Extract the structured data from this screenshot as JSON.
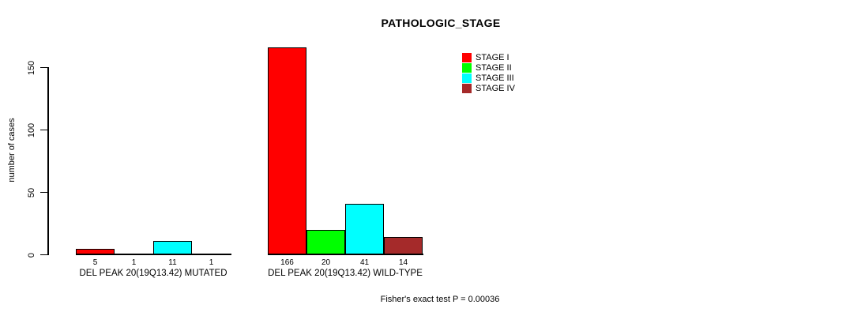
{
  "page": {
    "background_color": "#FFFFFF",
    "text_color": "#000000"
  },
  "chart_data": {
    "type": "bar",
    "title": "PATHOLOGIC_STAGE",
    "xlabel": "",
    "ylabel": "number of cases",
    "ylim": [
      0,
      150
    ],
    "yticks": [
      0,
      50,
      100,
      150
    ],
    "grid": false,
    "legend_position": "top-right",
    "bar_value_labels": true,
    "categories": [
      "DEL PEAK 20(19Q13.42) MUTATED",
      "DEL PEAK 20(19Q13.42) WILD-TYPE"
    ],
    "series": [
      {
        "name": "STAGE I",
        "color": "#FF0000",
        "values": [
          5,
          166
        ]
      },
      {
        "name": "STAGE II",
        "color": "#00FF00",
        "values": [
          1,
          20
        ]
      },
      {
        "name": "STAGE III",
        "color": "#00FFFF",
        "values": [
          11,
          41
        ]
      },
      {
        "name": "STAGE IV",
        "color": "#A52A2A",
        "values": [
          1,
          14
        ]
      }
    ],
    "annotation": "Fisher's exact test P = 0.00036"
  }
}
